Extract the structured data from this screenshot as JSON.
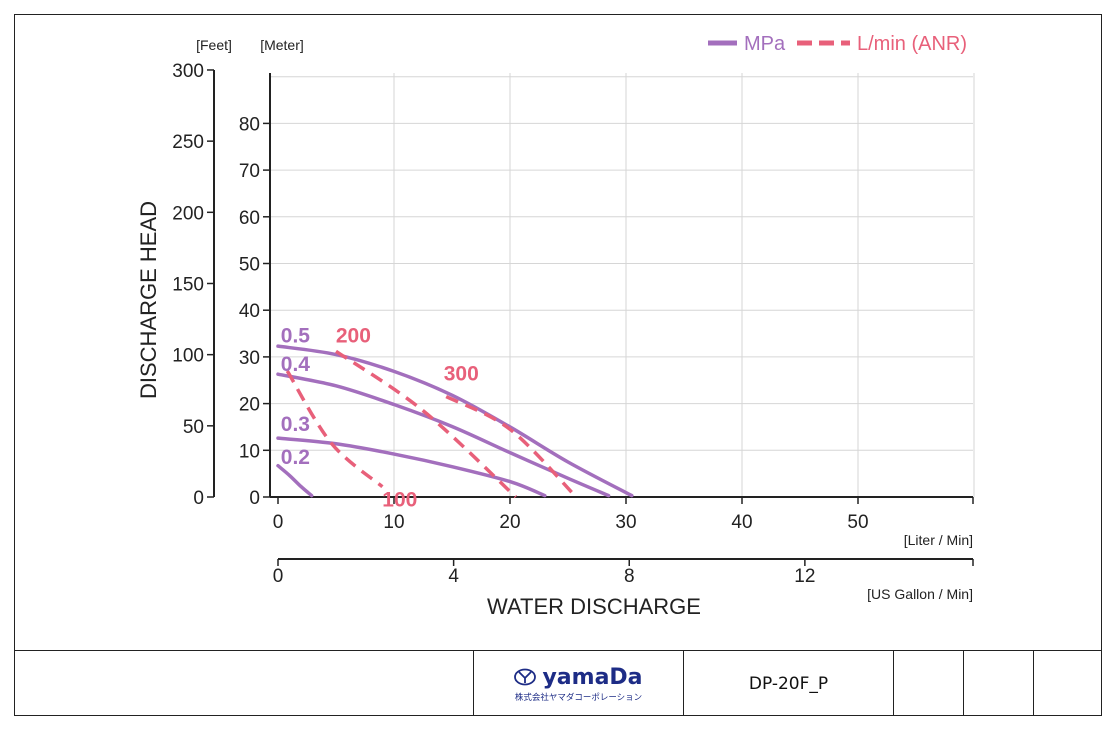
{
  "chart_data": {
    "type": "line",
    "title": "",
    "xlabel": "WATER DISCHARGE",
    "ylabel": "DISCHARGE HEAD",
    "x_unit_primary": "[Liter / Min]",
    "x_unit_secondary": "[US Gallon / Min]",
    "y_unit_feet": "[Feet]",
    "y_unit_meter": "[Meter]",
    "xlim": [
      0,
      60
    ],
    "ylim_meter": [
      0,
      90
    ],
    "x_ticks": [
      0,
      10,
      20,
      30,
      40,
      50
    ],
    "x_gallon_ticks": [
      0,
      4,
      8,
      12
    ],
    "y_meter_ticks": [
      0,
      10,
      20,
      30,
      40,
      50,
      60,
      70,
      80
    ],
    "y_feet_ticks": [
      0,
      50,
      100,
      150,
      200,
      250,
      300
    ],
    "grid": true,
    "legend": {
      "position": "top-right",
      "items": [
        {
          "label": "MPa",
          "style": "solid",
          "color": "#a36fbd"
        },
        {
          "label": "L/min (ANR)",
          "style": "dashed",
          "color": "#e8607a"
        }
      ]
    },
    "series": [
      {
        "name": "0.5",
        "style": "solid",
        "color": "#a36fbd",
        "points": [
          [
            0,
            32.3
          ],
          [
            5,
            30.5
          ],
          [
            10,
            26.9
          ],
          [
            15,
            21.8
          ],
          [
            20,
            15
          ],
          [
            25,
            7.5
          ],
          [
            30.5,
            0.3
          ]
        ]
      },
      {
        "name": "0.4",
        "style": "solid",
        "color": "#a36fbd",
        "points": [
          [
            0,
            26.3
          ],
          [
            5,
            23.8
          ],
          [
            10,
            19.8
          ],
          [
            15,
            15.1
          ],
          [
            20,
            9.5
          ],
          [
            25,
            4
          ],
          [
            28.5,
            0.3
          ]
        ]
      },
      {
        "name": "0.3",
        "style": "solid",
        "color": "#a36fbd",
        "points": [
          [
            0,
            12.6
          ],
          [
            5,
            11.4
          ],
          [
            10,
            9.2
          ],
          [
            15,
            6.5
          ],
          [
            20,
            3.3
          ],
          [
            23,
            0.3
          ]
        ]
      },
      {
        "name": "0.2",
        "style": "solid",
        "color": "#a36fbd",
        "points": [
          [
            0,
            6.7
          ],
          [
            1,
            4.6
          ],
          [
            2,
            2.2
          ],
          [
            2.9,
            0.3
          ]
        ]
      },
      {
        "name": "100",
        "style": "dashed",
        "color": "#e8607a",
        "points": [
          [
            0.8,
            27
          ],
          [
            4.6,
            11.5
          ],
          [
            9,
            2.2
          ]
        ]
      },
      {
        "name": "200",
        "style": "dashed",
        "color": "#e8607a",
        "points": [
          [
            5,
            31.2
          ],
          [
            12.5,
            18.5
          ],
          [
            20.5,
            0
          ]
        ]
      },
      {
        "name": "300",
        "style": "dashed",
        "color": "#e8607a",
        "points": [
          [
            14.5,
            21.5
          ],
          [
            20,
            14.5
          ],
          [
            25.7,
            0
          ]
        ]
      }
    ],
    "series_labels": [
      {
        "text": "0.5",
        "x": 1.5,
        "y": 34.5,
        "color": "#a36fbd"
      },
      {
        "text": "0.4",
        "x": 1.5,
        "y": 28.4,
        "color": "#a36fbd"
      },
      {
        "text": "0.3",
        "x": 1.5,
        "y": 15.5,
        "color": "#a36fbd"
      },
      {
        "text": "0.2",
        "x": 1.5,
        "y": 8.5,
        "color": "#a36fbd"
      },
      {
        "text": "200",
        "x": 6.5,
        "y": 34.5,
        "color": "#e8607a"
      },
      {
        "text": "300",
        "x": 15.8,
        "y": 26.3,
        "color": "#e8607a"
      },
      {
        "text": "100",
        "x": 10.5,
        "y": -0.6,
        "color": "#e8607a"
      }
    ]
  },
  "title_block": {
    "logo_text": "yamaDa",
    "logo_sub": "株式会社ヤマダコーポレーション",
    "logo_icon": "yamada-emblem-icon",
    "model_code": "DP-20F_P",
    "brand_color": "#1d2c86"
  }
}
